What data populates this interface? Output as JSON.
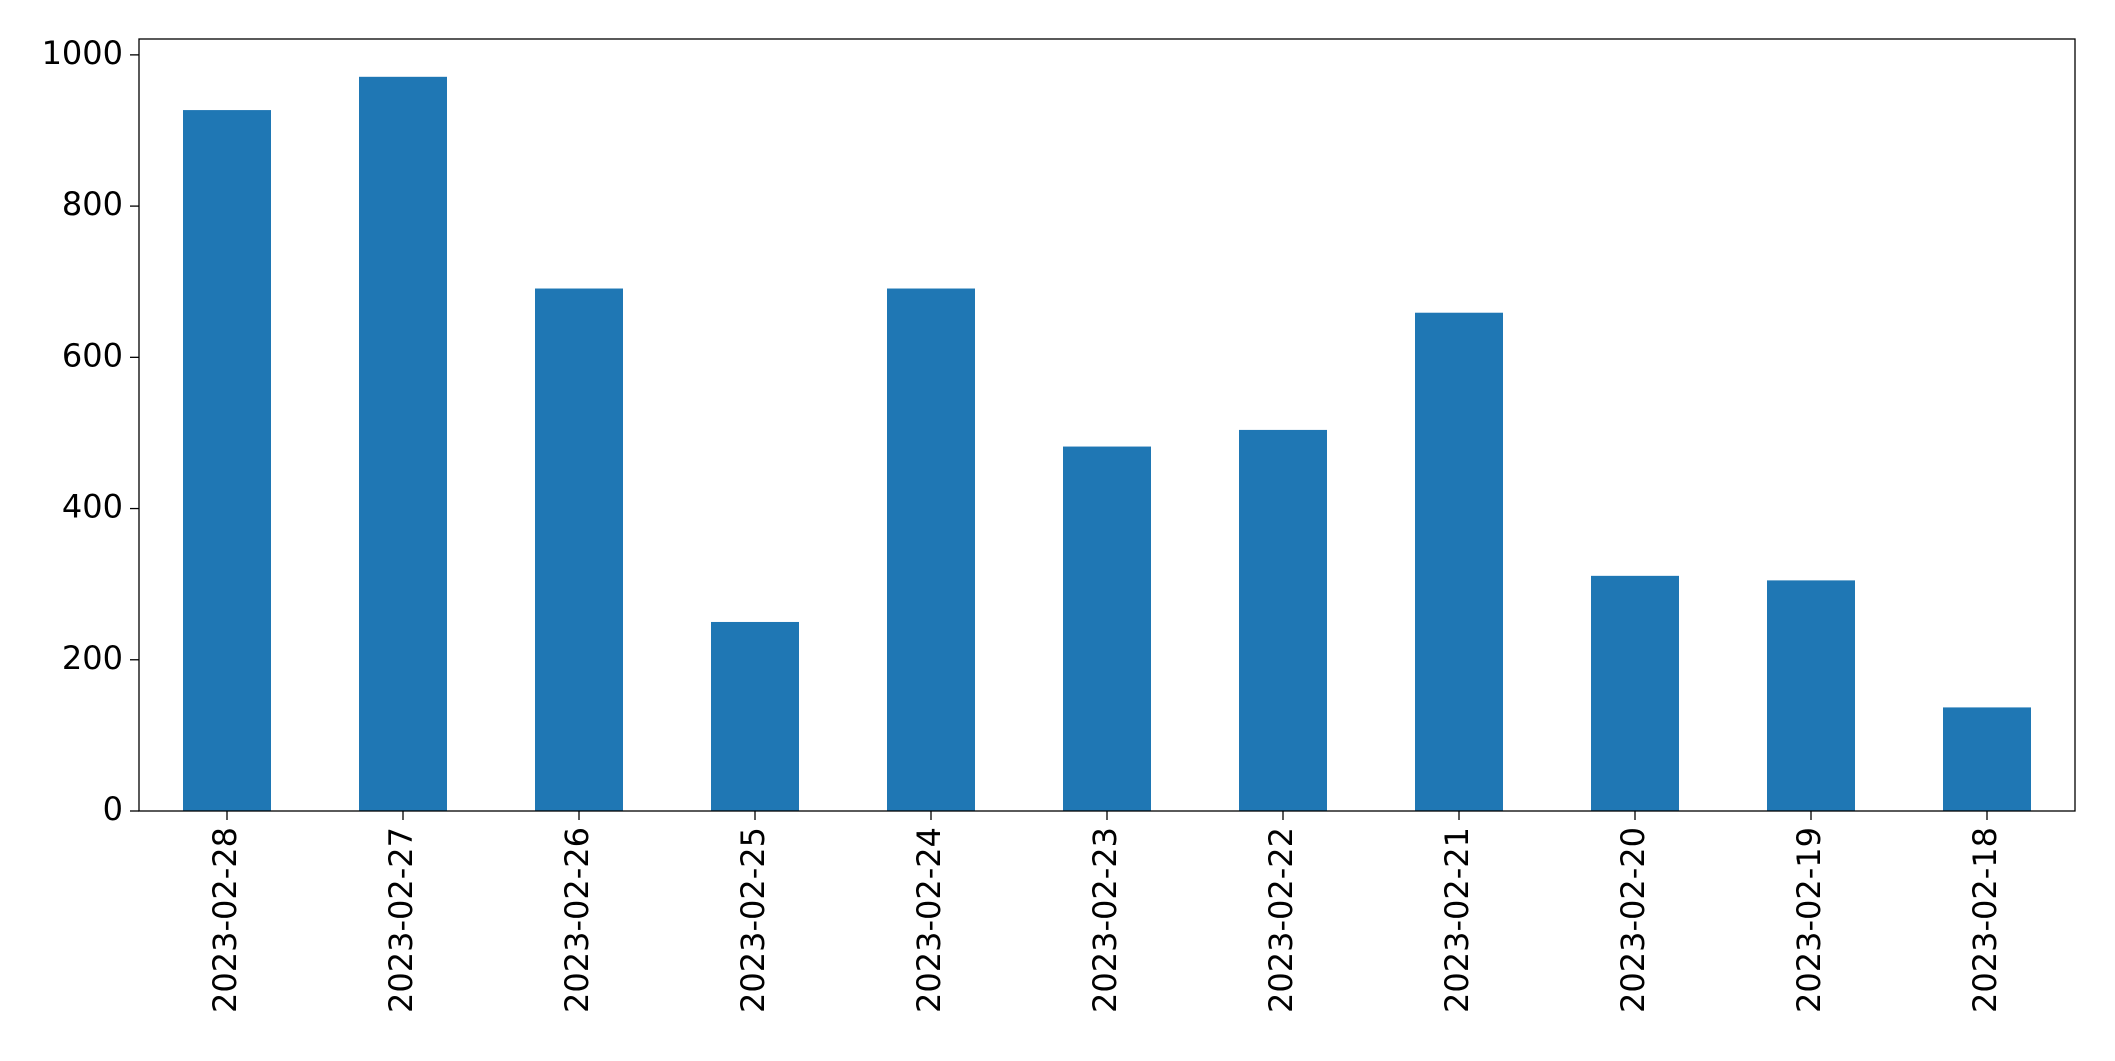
{
  "chart_data": {
    "type": "bar",
    "categories": [
      "2023-02-28",
      "2023-02-27",
      "2023-02-26",
      "2023-02-25",
      "2023-02-24",
      "2023-02-23",
      "2023-02-22",
      "2023-02-21",
      "2023-02-20",
      "2023-02-19",
      "2023-02-18"
    ],
    "values": [
      927,
      971,
      691,
      250,
      691,
      482,
      504,
      659,
      311,
      305,
      137
    ],
    "color": "#1f77b4",
    "ylim": [
      0,
      1021
    ],
    "yticks": [
      0,
      200,
      400,
      600,
      800,
      1000
    ],
    "grid": false
  }
}
